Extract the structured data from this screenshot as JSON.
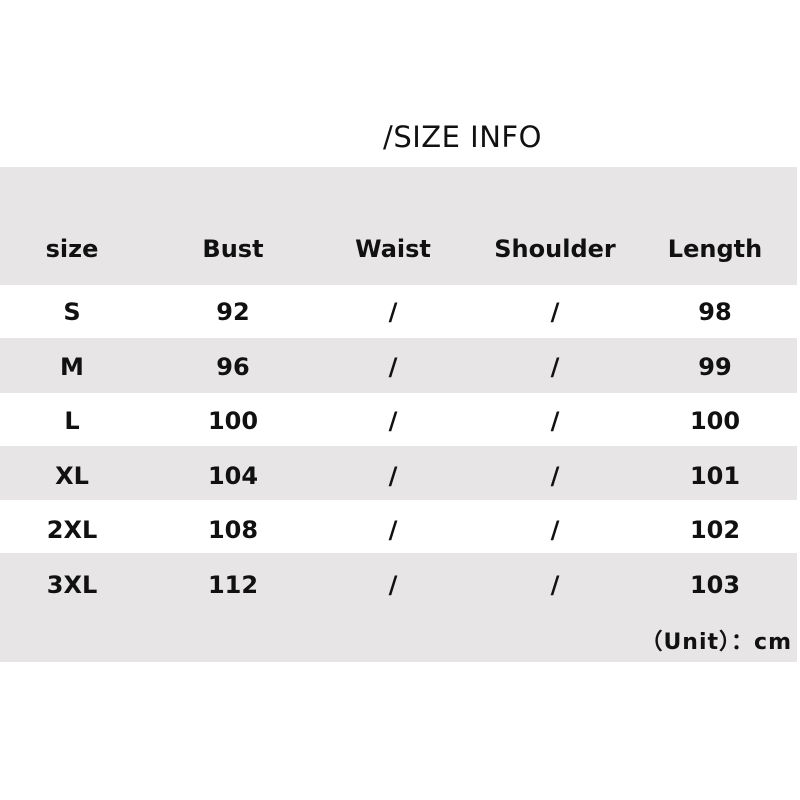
{
  "title": "/SIZE INFO",
  "table": {
    "headers": [
      "size",
      "Bust",
      "Waist",
      "Shoulder",
      "Length"
    ],
    "rows": [
      [
        "S",
        "92",
        "/",
        "/",
        "98"
      ],
      [
        "M",
        "96",
        "/",
        "/",
        "99"
      ],
      [
        "L",
        "100",
        "/",
        "/",
        "100"
      ],
      [
        "XL",
        "104",
        "/",
        "/",
        "101"
      ],
      [
        "2XL",
        "108",
        "/",
        "/",
        "102"
      ],
      [
        "3XL",
        "112",
        "/",
        "/",
        "103"
      ]
    ]
  },
  "unit_note": "（Unit）：cm",
  "colors": {
    "band_gray": "#e7e5e5",
    "text": "#111111"
  }
}
